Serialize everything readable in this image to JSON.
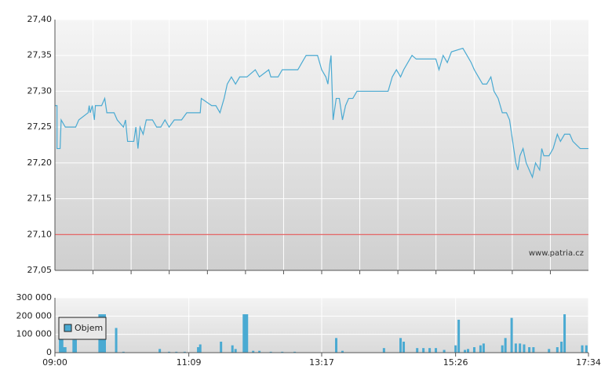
{
  "chart_data": [
    {
      "type": "line",
      "color": "#4aaad2",
      "x": [
        540,
        542,
        542,
        545,
        546,
        550,
        560,
        563,
        572,
        573,
        574,
        576,
        578,
        579,
        585,
        588,
        590,
        597,
        600,
        606,
        608,
        610,
        616,
        618,
        620,
        622,
        625,
        628,
        634,
        638,
        642,
        646,
        650,
        655,
        662,
        667,
        676,
        680,
        681,
        691,
        695,
        699,
        703,
        706,
        710,
        714,
        718,
        725,
        733,
        737,
        746,
        748,
        755,
        759,
        774,
        778,
        782,
        793,
        797,
        801,
        803,
        805,
        806,
        808,
        811,
        814,
        817,
        820,
        823,
        827,
        831,
        835,
        861,
        865,
        869,
        873,
        876,
        880,
        884,
        888,
        907,
        910,
        914,
        918,
        922,
        933,
        937,
        941,
        944,
        948,
        952,
        956,
        960,
        963,
        967,
        971,
        975,
        978,
        981,
        984,
        986,
        988,
        991,
        994,
        997,
        1000,
        1003,
        1007,
        1009,
        1011,
        1016,
        1020,
        1024,
        1027,
        1031,
        1036,
        1039,
        1046,
        1054
      ],
      "values": [
        27.28,
        27.28,
        27.22,
        27.22,
        27.26,
        27.25,
        27.25,
        27.26,
        27.27,
        27.28,
        27.27,
        27.28,
        27.26,
        27.28,
        27.28,
        27.29,
        27.27,
        27.27,
        27.26,
        27.25,
        27.26,
        27.23,
        27.23,
        27.25,
        27.22,
        27.25,
        27.24,
        27.26,
        27.26,
        27.25,
        27.25,
        27.26,
        27.25,
        27.26,
        27.26,
        27.27,
        27.27,
        27.27,
        27.29,
        27.28,
        27.28,
        27.27,
        27.29,
        27.31,
        27.32,
        27.31,
        27.32,
        27.32,
        27.33,
        27.32,
        27.33,
        27.32,
        27.32,
        27.33,
        27.33,
        27.34,
        27.35,
        27.35,
        27.33,
        27.32,
        27.31,
        27.34,
        27.35,
        27.26,
        27.29,
        27.29,
        27.26,
        27.28,
        27.29,
        27.29,
        27.3,
        27.3,
        27.3,
        27.32,
        27.33,
        27.32,
        27.33,
        27.34,
        27.35,
        27.345,
        27.345,
        27.33,
        27.35,
        27.34,
        27.355,
        27.36,
        27.35,
        27.34,
        27.33,
        27.32,
        27.31,
        27.31,
        27.32,
        27.3,
        27.29,
        27.27,
        27.27,
        27.26,
        27.23,
        27.2,
        27.19,
        27.21,
        27.22,
        27.2,
        27.19,
        27.18,
        27.2,
        27.19,
        27.22,
        27.21,
        27.21,
        27.22,
        27.24,
        27.23,
        27.24,
        27.24,
        27.23,
        27.22,
        27.22
      ],
      "xlim": [
        540,
        1054
      ],
      "xticks": [
        576.7,
        613.4,
        650.1,
        686.9,
        723.6,
        760.3,
        797,
        833.7,
        870.4,
        907.1,
        943.9,
        980.6,
        1017.3
      ],
      "ylim": [
        27.05,
        27.4
      ],
      "yticks": [
        {
          "value": 27.05,
          "label": "27,05"
        },
        {
          "value": 27.1,
          "label": "27,10"
        },
        {
          "value": 27.15,
          "label": "27,15"
        },
        {
          "value": 27.2,
          "label": "27,20"
        },
        {
          "value": 27.25,
          "label": "27,25"
        },
        {
          "value": 27.3,
          "label": "27,30"
        },
        {
          "value": 27.35,
          "label": "27,35"
        },
        {
          "value": 27.4,
          "label": "27,40"
        }
      ],
      "reference_line": {
        "value": 27.1,
        "color": "#e03c3c"
      },
      "watermark": "www.patria.cz",
      "grid": true
    },
    {
      "type": "bar",
      "x": [
        545,
        547,
        548,
        550,
        558,
        560,
        583,
        584,
        586,
        588,
        599,
        606,
        641,
        650,
        657,
        665,
        678,
        680,
        700,
        711,
        714,
        722,
        724,
        725,
        731,
        737,
        748,
        759,
        771,
        811,
        817,
        857,
        873,
        876,
        889,
        895,
        901,
        907,
        915,
        926,
        929,
        935,
        938,
        944,
        950,
        953,
        971,
        974,
        980,
        984,
        988,
        992,
        997,
        1001,
        1016,
        1024,
        1028,
        1031,
        1048,
        1052
      ],
      "series": [
        {
          "name": "Objem",
          "color": "#4aaad2",
          "values": [
            150000,
            150000,
            30000,
            30000,
            70000,
            70000,
            210000,
            210000,
            210000,
            210000,
            135000,
            5000,
            20000,
            5000,
            5000,
            5000,
            30000,
            45000,
            60000,
            40000,
            20000,
            210000,
            210000,
            210000,
            10000,
            10000,
            5000,
            5000,
            5000,
            80000,
            10000,
            25000,
            80000,
            60000,
            25000,
            25000,
            25000,
            25000,
            15000,
            40000,
            180000,
            15000,
            20000,
            30000,
            40000,
            50000,
            40000,
            80000,
            190000,
            50000,
            50000,
            45000,
            30000,
            30000,
            20000,
            30000,
            60000,
            210000,
            40000,
            40000
          ]
        }
      ],
      "xlim": [
        540,
        1054
      ],
      "xticks": [
        {
          "value": 540,
          "label": "09:00"
        },
        {
          "value": 669,
          "label": "11:09"
        },
        {
          "value": 797,
          "label": "13:17"
        },
        {
          "value": 926,
          "label": "15:26"
        },
        {
          "value": 1054,
          "label": "17:34"
        }
      ],
      "ylim": [
        0,
        300000
      ],
      "yticks": [
        {
          "value": 0,
          "label": "0"
        },
        {
          "value": 100000,
          "label": "100 000"
        },
        {
          "value": 200000,
          "label": "200 000"
        },
        {
          "value": 300000,
          "label": "300 000"
        }
      ],
      "grid": true
    }
  ]
}
